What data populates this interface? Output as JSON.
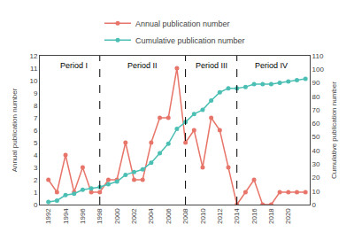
{
  "chart_data": {
    "type": "line",
    "x": [
      1992,
      1993,
      1994,
      1995,
      1996,
      1997,
      1998,
      1999,
      2000,
      2001,
      2002,
      2003,
      2004,
      2005,
      2006,
      2007,
      2008,
      2009,
      2010,
      2011,
      2012,
      2013,
      2014,
      2015,
      2016,
      2017,
      2018,
      2019,
      2020,
      2021,
      2022
    ],
    "series": [
      {
        "name": "Annual publication number",
        "color": "#E8756A",
        "marker": "circle",
        "values": [
          2,
          1,
          4,
          1,
          3,
          1,
          1,
          2,
          2,
          5,
          2,
          2,
          5,
          7,
          7,
          11,
          5,
          6,
          3,
          7,
          6,
          3,
          0,
          1,
          2,
          0,
          0,
          1,
          1,
          1,
          1
        ]
      },
      {
        "name": "Cumulative publication number",
        "color": "#4BBFB4",
        "marker": "circle",
        "axis": "y2",
        "values": [
          2,
          3,
          7,
          8,
          11,
          12,
          13,
          15,
          17,
          22,
          24,
          26,
          31,
          38,
          45,
          56,
          61,
          67,
          70,
          77,
          83,
          86,
          86,
          87,
          89,
          89,
          89,
          90,
          91,
          92,
          93
        ]
      }
    ],
    "ylabel": "Annual publication number",
    "y2label": "Cumulative publication number",
    "xlim": [
      1991,
      2022.5
    ],
    "xticks": [
      1992,
      1994,
      1996,
      1998,
      2000,
      2002,
      2004,
      2006,
      2008,
      2010,
      2012,
      2014,
      2016,
      2018,
      2020
    ],
    "ylim": [
      0,
      12
    ],
    "yticks": [
      0,
      1,
      2,
      3,
      4,
      5,
      6,
      7,
      8,
      9,
      10,
      11,
      12
    ],
    "y2lim": [
      0,
      110
    ],
    "y2ticks": [
      0,
      10,
      20,
      30,
      40,
      50,
      60,
      70,
      80,
      90,
      100,
      110
    ],
    "vlines": [
      1998,
      2008,
      2014
    ],
    "annotations": [
      {
        "x": 1995,
        "y": 11.7,
        "text": "Period I"
      },
      {
        "x": 2003,
        "y": 11.7,
        "text": "Period II"
      },
      {
        "x": 2011,
        "y": 11.7,
        "text": "Period III"
      },
      {
        "x": 2018,
        "y": 11.7,
        "text": "Period IV"
      }
    ],
    "grid": false,
    "legend": "upper center"
  }
}
